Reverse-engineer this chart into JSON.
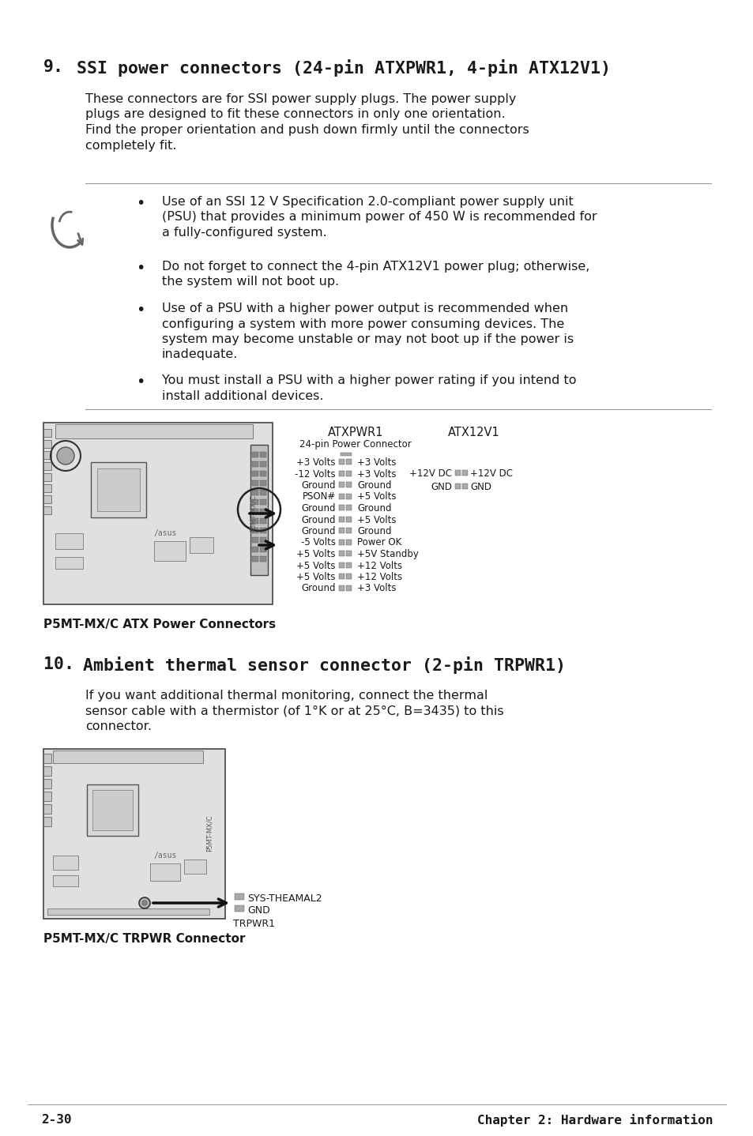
{
  "page_bg": "#ffffff",
  "text_color": "#1a1a1a",
  "title1_num": "9.",
  "title1_text": "SSI power connectors (24-pin ATXPWR1, 4-pin ATX12V1)",
  "body1_lines": [
    "These connectors are for SSI power supply plugs. The power supply",
    "plugs are designed to fit these connectors in only one orientation.",
    "Find the proper orientation and push down firmly until the connectors",
    "completely fit."
  ],
  "bullet1_lines": [
    "Use of an SSI 12 V Specification 2.0-compliant power supply unit",
    "(PSU) that provides a minimum power of 450 W is recommended for",
    "a fully-configured system."
  ],
  "bullet2_lines": [
    "Do not forget to connect the 4-pin ATX12V1 power plug; otherwise,",
    "the system will not boot up."
  ],
  "bullet3_lines": [
    "Use of a PSU with a higher power output is recommended when",
    "configuring a system with more power consuming devices. The",
    "system may become unstable or may not boot up if the power is",
    "inadequate."
  ],
  "bullet4_lines": [
    "You must install a PSU with a higher power rating if you intend to",
    "install additional devices."
  ],
  "caption1": "P5MT-MX/C ATX Power Connectors",
  "atxpwr1_label": "ATXPWR1",
  "atxpwr1_sub": "24-pin Power Connector",
  "atx12v1_label": "ATX12V1",
  "atxpwr1_pins_left": [
    "+3 Volts",
    "-12 Volts",
    "Ground",
    "PSON#",
    "Ground",
    "Ground",
    "Ground",
    "-5 Volts",
    "+5 Volts",
    "+5 Volts",
    "+5 Volts",
    "Ground"
  ],
  "atxpwr1_pins_right": [
    "+3 Volts",
    "+3 Volts",
    "Ground",
    "+5 Volts",
    "Ground",
    "+5 Volts",
    "Ground",
    "Power OK",
    "+5V Standby",
    "+12 Volts",
    "+12 Volts",
    "+3 Volts"
  ],
  "atx12v1_pins_left": [
    "+12V DC",
    "GND"
  ],
  "atx12v1_pins_right": [
    "+12V DC",
    "GND"
  ],
  "title2_num": "10.",
  "title2_text": "Ambient thermal sensor connector (2-pin TRPWR1)",
  "body2_lines": [
    "If you want additional thermal monitoring, connect the thermal",
    "sensor cable with a thermistor (of 1°K or at 25°C, B=3435) to this",
    "connector."
  ],
  "caption2": "P5MT-MX/C TRPWR Connector",
  "trpwr1_label": "TRPWR1",
  "trpwr1_pins": [
    "SYS-THEAMAL2",
    "GND"
  ],
  "footer_left": "2-30",
  "footer_right": "Chapter 2: Hardware information",
  "body_font": "DejaVu Sans",
  "mono_font": "DejaVu Sans Mono",
  "body_fs": 11.5,
  "title_fs": 15.5,
  "bullet_fs": 11.5,
  "small_fs": 8.5,
  "caption_fs": 11.0,
  "footer_fs": 11.5,
  "lh": 19.5
}
